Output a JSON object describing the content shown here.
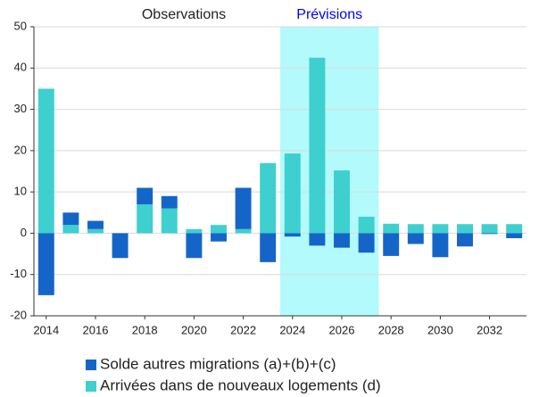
{
  "chart_data": {
    "type": "bar",
    "stacked": true,
    "x": [
      2014,
      2015,
      2016,
      2017,
      2018,
      2019,
      2020,
      2021,
      2022,
      2023,
      2024,
      2025,
      2026,
      2027,
      2028,
      2029,
      2030,
      2031,
      2032,
      2033
    ],
    "xlim": [
      2013.5,
      2033.5
    ],
    "xticks": [
      2014,
      2016,
      2018,
      2020,
      2022,
      2024,
      2026,
      2028,
      2030,
      2032
    ],
    "ylim": [
      -20,
      50
    ],
    "yticks": [
      -20,
      -10,
      0,
      10,
      20,
      30,
      40,
      50
    ],
    "grid": true,
    "legend": "bottom",
    "series": [
      {
        "name": "Solde autres migrations (a)+(b)+(c)",
        "color": "#1565c8",
        "values": [
          -15,
          3,
          2,
          -6,
          4,
          3,
          -6,
          -2,
          10,
          -7,
          -0.8,
          -3,
          -3.5,
          -4.7,
          -5.5,
          -2.6,
          -5.8,
          -3.2,
          -0.2,
          -1.2
        ]
      },
      {
        "name": "Arrivées dans de nouveaux logements (d)",
        "color": "#3ecfcf",
        "values": [
          35,
          2,
          1,
          0,
          7,
          6,
          1,
          2,
          1,
          17,
          19.3,
          42.5,
          15.2,
          4,
          2.3,
          2.2,
          2.2,
          2.2,
          2.2,
          2.2
        ]
      }
    ],
    "annotations": [
      {
        "text": "Observations",
        "color": "#222222",
        "span": [
          2013.5,
          2023.5
        ]
      },
      {
        "text": "Prévisions",
        "color": "#0000ff",
        "span": [
          2023.5,
          2027.5
        ],
        "shade": "#b3fafc"
      }
    ]
  }
}
